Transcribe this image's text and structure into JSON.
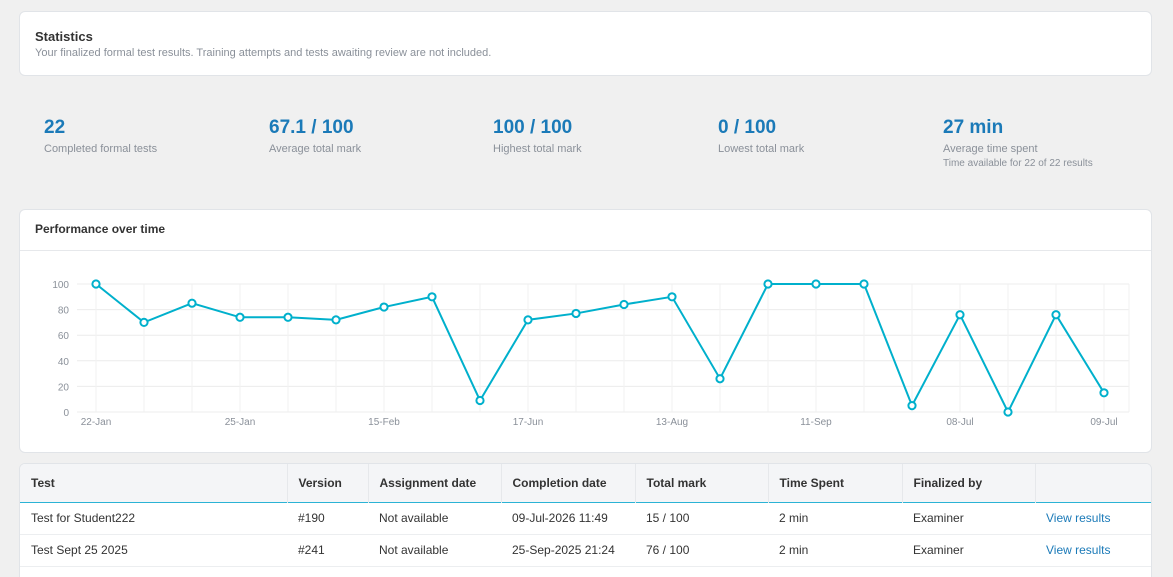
{
  "header": {
    "title": "Statistics",
    "subtitle": "Your finalized formal test results. Training attempts and tests awaiting review are not included."
  },
  "stats": [
    {
      "value": "22",
      "label": "Completed formal tests",
      "note": ""
    },
    {
      "value": "67.1 / 100",
      "label": "Average total mark",
      "note": ""
    },
    {
      "value": "100 / 100",
      "label": "Highest total mark",
      "note": ""
    },
    {
      "value": "0 / 100",
      "label": "Lowest total mark",
      "note": ""
    },
    {
      "value": "27 min",
      "label": "Average time spent",
      "note": "Time available for 22 of 22 results"
    }
  ],
  "chart": {
    "title": "Performance over time"
  },
  "chart_data": {
    "type": "line",
    "title": "Performance over time",
    "xlabel": "",
    "ylabel": "",
    "ylim": [
      0,
      100
    ],
    "yticks": [
      0,
      20,
      40,
      60,
      80,
      100
    ],
    "xtick_labels": [
      "22-Jan",
      "25-Jan",
      "15-Feb",
      "17-Jun",
      "13-Aug",
      "11-Sep",
      "08-Jul",
      "09-Jul"
    ],
    "xtick_indices": [
      0,
      3,
      6,
      9,
      12,
      15,
      18,
      21
    ],
    "grid": true,
    "color": "#00b0cc",
    "series": [
      {
        "values": [
          100,
          70,
          85,
          74,
          74,
          72,
          82,
          90,
          9,
          72,
          77,
          84,
          90,
          26,
          100,
          100,
          100,
          5,
          76,
          0,
          76,
          15
        ]
      }
    ]
  },
  "table": {
    "columns": [
      "Test",
      "Version",
      "Assignment date",
      "Completion date",
      "Total mark",
      "Time Spent",
      "Finalized by",
      ""
    ],
    "rows": [
      [
        "Test for Student222",
        "#190",
        "Not available",
        "09-Jul-2026 11:49",
        "15 / 100",
        "2 min",
        "Examiner",
        "View results"
      ],
      [
        "Test Sept 25 2025",
        "#241",
        "Not available",
        "25-Sep-2025 21:24",
        "76 / 100",
        "2 min",
        "Examiner",
        "View results"
      ]
    ]
  }
}
